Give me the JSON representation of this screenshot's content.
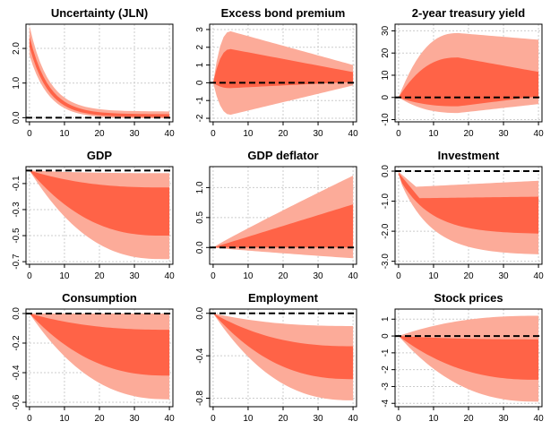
{
  "colors": {
    "outer_band": "#FCAB99",
    "inner_band": "#FF6347",
    "grid": "#cccccc",
    "zero_line": "#000000",
    "axis": "#000000"
  },
  "chart_data": [
    {
      "type": "area",
      "title": "Uncertainty (JLN)",
      "x": [
        0,
        1,
        2,
        3,
        4,
        5,
        6,
        7,
        8,
        9,
        10,
        11,
        12,
        13,
        14,
        15,
        16,
        17,
        18,
        19,
        20,
        21,
        22,
        23,
        24,
        25,
        26,
        27,
        28,
        29,
        30,
        31,
        32,
        33,
        34,
        35,
        36,
        37,
        38,
        39,
        40
      ],
      "xticks": [
        0,
        10,
        20,
        30,
        40
      ],
      "xlim": [
        -1,
        41
      ],
      "yticks": [
        0,
        1,
        2
      ],
      "ytick_labels": [
        "0.0",
        "1.0",
        "2.0"
      ],
      "ylim": [
        -0.12,
        2.7
      ],
      "params": {
        "mode": "decay",
        "tau": 5.5,
        "outer_low_peak": 1.8,
        "outer_low_end": -0.02,
        "inner_low_peak": 2.05,
        "inner_low_end": 0.02,
        "inner_high_peak": 2.35,
        "inner_high_end": 0.1,
        "outer_high_peak": 2.65,
        "outer_high_end": 0.18
      }
    },
    {
      "type": "area",
      "title": "Excess bond premium",
      "x": [
        0,
        1,
        2,
        3,
        4,
        5,
        6,
        7,
        8,
        9,
        10,
        11,
        12,
        13,
        14,
        15,
        16,
        17,
        18,
        19,
        20,
        21,
        22,
        23,
        24,
        25,
        26,
        27,
        28,
        29,
        30,
        31,
        32,
        33,
        34,
        35,
        36,
        37,
        38,
        39,
        40
      ],
      "xticks": [
        0,
        10,
        20,
        30,
        40
      ],
      "xlim": [
        -1,
        41
      ],
      "yticks": [
        -2,
        -1,
        0,
        1,
        2,
        3
      ],
      "ytick_labels": [
        "-2",
        "-1",
        "0",
        "1",
        "2",
        "3"
      ],
      "ylim": [
        -2.2,
        3.3
      ],
      "params": {
        "mode": "hump",
        "t_peak": 5,
        "outer_low_peak": -1.8,
        "outer_low_end": -0.15,
        "inner_low_peak": -0.3,
        "inner_low_end": 0.05,
        "inner_high_peak": 1.9,
        "inner_high_end": 0.6,
        "outer_high_peak": 2.9,
        "outer_high_end": 1.0
      }
    },
    {
      "type": "area",
      "title": "2-year treasury yield",
      "x": [
        0,
        1,
        2,
        3,
        4,
        5,
        6,
        7,
        8,
        9,
        10,
        11,
        12,
        13,
        14,
        15,
        16,
        17,
        18,
        19,
        20,
        21,
        22,
        23,
        24,
        25,
        26,
        27,
        28,
        29,
        30,
        31,
        32,
        33,
        34,
        35,
        36,
        37,
        38,
        39,
        40
      ],
      "xticks": [
        0,
        10,
        20,
        30,
        40
      ],
      "xlim": [
        -1,
        41
      ],
      "yticks": [
        -10,
        0,
        10,
        20,
        30
      ],
      "ytick_labels": [
        "-10",
        "0",
        "10",
        "20",
        "30"
      ],
      "ylim": [
        -11,
        33
      ],
      "params": {
        "mode": "hump",
        "t_peak": 17,
        "outer_low_peak": -7,
        "outer_low_end": -3,
        "inner_low_peak": -4,
        "inner_low_end": 0.5,
        "inner_high_peak": 18,
        "inner_high_end": 11.5,
        "outer_high_peak": 29,
        "outer_high_end": 26
      }
    },
    {
      "type": "area",
      "title": "GDP",
      "x": [
        0,
        1,
        2,
        3,
        4,
        5,
        6,
        7,
        8,
        9,
        10,
        11,
        12,
        13,
        14,
        15,
        16,
        17,
        18,
        19,
        20,
        21,
        22,
        23,
        24,
        25,
        26,
        27,
        28,
        29,
        30,
        31,
        32,
        33,
        34,
        35,
        36,
        37,
        38,
        39,
        40
      ],
      "xticks": [
        0,
        10,
        20,
        30,
        40
      ],
      "xlim": [
        -1,
        41
      ],
      "yticks": [
        -0.1,
        -0.3,
        -0.5,
        -0.7
      ],
      "ytick_labels": [
        "-0.1",
        "-0.3",
        "-0.5",
        "-0.7"
      ],
      "ylim": [
        -0.72,
        0.03
      ],
      "params": {
        "mode": "hump",
        "t_peak": 38,
        "outer_low_peak": -0.68,
        "outer_low_end": -0.68,
        "inner_low_peak": -0.5,
        "inner_low_end": -0.5,
        "inner_high_peak": -0.13,
        "inner_high_end": -0.13,
        "outer_high_peak": -0.02,
        "outer_high_end": -0.02
      }
    },
    {
      "type": "area",
      "title": "GDP deflator",
      "x": [
        0,
        1,
        2,
        3,
        4,
        5,
        6,
        7,
        8,
        9,
        10,
        11,
        12,
        13,
        14,
        15,
        16,
        17,
        18,
        19,
        20,
        21,
        22,
        23,
        24,
        25,
        26,
        27,
        28,
        29,
        30,
        31,
        32,
        33,
        34,
        35,
        36,
        37,
        38,
        39,
        40
      ],
      "xticks": [
        0,
        10,
        20,
        30,
        40
      ],
      "xlim": [
        -1,
        41
      ],
      "yticks": [
        0,
        0.5,
        1.0
      ],
      "ytick_labels": [
        "0.0",
        "0.5",
        "1.0"
      ],
      "ylim": [
        -0.28,
        1.35
      ],
      "params": {
        "mode": "linear",
        "outer_low_end": -0.18,
        "inner_low_end": 0.0,
        "inner_high_end": 0.72,
        "outer_high_end": 1.2
      }
    },
    {
      "type": "area",
      "title": "Investment",
      "x": [
        0,
        1,
        2,
        3,
        4,
        5,
        6,
        7,
        8,
        9,
        10,
        11,
        12,
        13,
        14,
        15,
        16,
        17,
        18,
        19,
        20,
        21,
        22,
        23,
        24,
        25,
        26,
        27,
        28,
        29,
        30,
        31,
        32,
        33,
        34,
        35,
        36,
        37,
        38,
        39,
        40
      ],
      "xticks": [
        0,
        10,
        20,
        30,
        40
      ],
      "xlim": [
        -1,
        41
      ],
      "yticks": [
        0,
        -1,
        -2,
        -3
      ],
      "ytick_labels": [
        "0.0",
        "-1.0",
        "-2.0",
        "-3.0"
      ],
      "ylim": [
        -3.1,
        0.15
      ],
      "params": {
        "mode": "invest"
      }
    },
    {
      "type": "area",
      "title": "Consumption",
      "x": [
        0,
        1,
        2,
        3,
        4,
        5,
        6,
        7,
        8,
        9,
        10,
        11,
        12,
        13,
        14,
        15,
        16,
        17,
        18,
        19,
        20,
        21,
        22,
        23,
        24,
        25,
        26,
        27,
        28,
        29,
        30,
        31,
        32,
        33,
        34,
        35,
        36,
        37,
        38,
        39,
        40
      ],
      "xticks": [
        0,
        10,
        20,
        30,
        40
      ],
      "xlim": [
        -1,
        41
      ],
      "yticks": [
        0,
        -0.2,
        -0.4,
        -0.6
      ],
      "ytick_labels": [
        "0.0",
        "-0.2",
        "-0.4",
        "-0.6"
      ],
      "ylim": [
        -0.63,
        0.03
      ],
      "params": {
        "mode": "hump",
        "t_peak": 40,
        "outer_low_peak": -0.58,
        "outer_low_end": -0.58,
        "inner_low_peak": -0.42,
        "inner_low_end": -0.42,
        "inner_high_peak": -0.11,
        "inner_high_end": -0.11,
        "outer_high_peak": 0.0,
        "outer_high_end": 0.0
      }
    },
    {
      "type": "area",
      "title": "Employment",
      "x": [
        0,
        1,
        2,
        3,
        4,
        5,
        6,
        7,
        8,
        9,
        10,
        11,
        12,
        13,
        14,
        15,
        16,
        17,
        18,
        19,
        20,
        21,
        22,
        23,
        24,
        25,
        26,
        27,
        28,
        29,
        30,
        31,
        32,
        33,
        34,
        35,
        36,
        37,
        38,
        39,
        40
      ],
      "xticks": [
        0,
        10,
        20,
        30,
        40
      ],
      "xlim": [
        -1,
        41
      ],
      "yticks": [
        0,
        -0.4,
        -0.8
      ],
      "ytick_labels": [
        "0.0",
        "-0.4",
        "-0.8"
      ],
      "ylim": [
        -0.88,
        0.04
      ],
      "params": {
        "mode": "hump",
        "t_peak": 40,
        "outer_low_peak": -0.82,
        "outer_low_end": -0.82,
        "inner_low_peak": -0.62,
        "inner_low_end": -0.62,
        "inner_high_peak": -0.31,
        "inner_high_end": -0.3,
        "outer_high_peak": -0.12,
        "outer_high_end": -0.12
      }
    },
    {
      "type": "area",
      "title": "Stock prices",
      "x": [
        0,
        1,
        2,
        3,
        4,
        5,
        6,
        7,
        8,
        9,
        10,
        11,
        12,
        13,
        14,
        15,
        16,
        17,
        18,
        19,
        20,
        21,
        22,
        23,
        24,
        25,
        26,
        27,
        28,
        29,
        30,
        31,
        32,
        33,
        34,
        35,
        36,
        37,
        38,
        39,
        40
      ],
      "xticks": [
        0,
        10,
        20,
        30,
        40
      ],
      "xlim": [
        -1,
        41
      ],
      "yticks": [
        1,
        0,
        -1,
        -2,
        -3,
        -4
      ],
      "ytick_labels": [
        "1",
        "0",
        "-1",
        "-2",
        "-3",
        "-4"
      ],
      "ylim": [
        -4.2,
        1.6
      ],
      "params": {
        "mode": "hump",
        "t_peak": 40,
        "outer_low_peak": -3.9,
        "outer_low_end": -3.9,
        "inner_low_peak": -2.6,
        "inner_low_end": -2.6,
        "inner_high_peak": -0.2,
        "inner_high_end": -0.2,
        "outer_high_peak": 1.2,
        "outer_high_end": 1.2
      }
    }
  ]
}
